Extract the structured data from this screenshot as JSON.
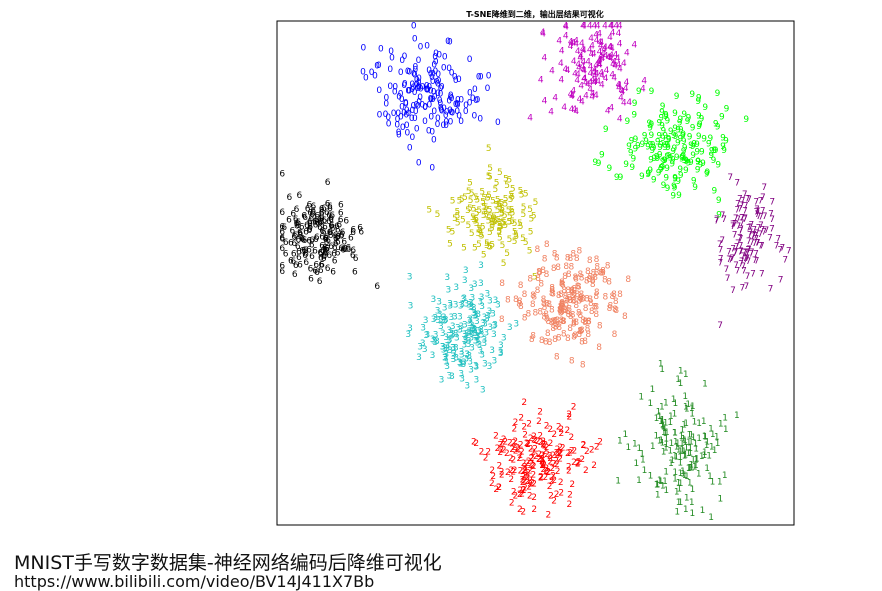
{
  "caption": "MNIST手写数字数据集-神经网络编码后降维可视化",
  "url": "https://www.bilibili.com/video/BV14J411X7Bb",
  "chart_data": {
    "type": "scatter",
    "title": "T-SNE降维到二维，输出层结果可视化",
    "xlabel": "",
    "ylabel": "",
    "xlim": [
      0,
      100
    ],
    "ylim": [
      0,
      100
    ],
    "grid": false,
    "legend": "none",
    "marker": "digit glyph (text label of the class)",
    "series": [
      {
        "name": "0",
        "color": "#0000ff",
        "center": [
          29,
          85
        ],
        "spread": [
          5,
          5
        ],
        "count": 180
      },
      {
        "name": "1",
        "color": "#228b22",
        "center": [
          78,
          15
        ],
        "spread": [
          4,
          7
        ],
        "count": 170
      },
      {
        "name": "2",
        "color": "#ff0000",
        "center": [
          50,
          12
        ],
        "spread": [
          5,
          4
        ],
        "count": 200
      },
      {
        "name": "3",
        "color": "#20c0c0",
        "center": [
          36,
          38
        ],
        "spread": [
          4,
          5
        ],
        "count": 190
      },
      {
        "name": "4",
        "color": "#c000c0",
        "center": [
          61,
          91
        ],
        "spread": [
          4,
          5
        ],
        "count": 150
      },
      {
        "name": "5",
        "color": "#c0c000",
        "center": [
          41,
          61
        ],
        "spread": [
          4,
          4
        ],
        "count": 140
      },
      {
        "name": "6",
        "color": "#000000",
        "center": [
          8,
          57
        ],
        "spread": [
          4,
          4
        ],
        "count": 180
      },
      {
        "name": "7",
        "color": "#800080",
        "center": [
          91,
          56
        ],
        "spread": [
          3,
          5
        ],
        "count": 130
      },
      {
        "name": "8",
        "color": "#f08060",
        "center": [
          57,
          44
        ],
        "spread": [
          5,
          5
        ],
        "count": 190
      },
      {
        "name": "9",
        "color": "#00ff00",
        "center": [
          77,
          74
        ],
        "spread": [
          5,
          5
        ],
        "count": 170
      }
    ]
  }
}
